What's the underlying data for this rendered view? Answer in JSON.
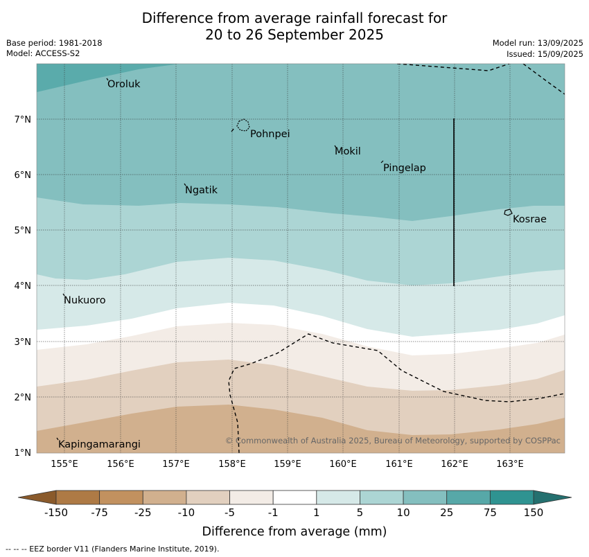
{
  "title_line1": "Difference from average rainfall forecast for",
  "title_line2": "20 to 26 September 2025",
  "base_period": "Base period: 1981-2018",
  "model": "Model: ACCESS-S2",
  "model_run": "Model run: 13/09/2025",
  "issued": "Issued: 15/09/2025",
  "copyright": "© Commonwealth of Australia 2025, Bureau of Meteorology, supported by COSPPac",
  "lat_ticks": [
    "7°N",
    "6°N",
    "5°N",
    "4°N",
    "3°N",
    "2°N",
    "1°N"
  ],
  "lon_ticks": [
    "155°E",
    "156°E",
    "157°E",
    "158°E",
    "159°E",
    "160°E",
    "161°E",
    "162°E",
    "163°E"
  ],
  "places": [
    "Oroluk",
    "Pohnpei",
    "Mokil",
    "Pingelap",
    "Ngatik",
    "Kosrae",
    "Nukuoro",
    "Kapingamarangi"
  ],
  "legend_title": "Difference from average (mm)",
  "legend_values": [
    "-150",
    "-75",
    "-25",
    "-10",
    "-5",
    "-1",
    "1",
    "5",
    "10",
    "25",
    "75",
    "150"
  ],
  "legend_colors": [
    "#8a5a2b",
    "#ae7a45",
    "#c2915f",
    "#d1b08e",
    "#e2d0bf",
    "#f3ece6",
    "#ffffff",
    "#d6e9e8",
    "#acd5d4",
    "#84bfbf",
    "#57a8a8",
    "#2f9391",
    "#24706f"
  ],
  "footer_note": "--  --  -- EEZ border V11 (Flanders Marine Institute, 2019)."
}
